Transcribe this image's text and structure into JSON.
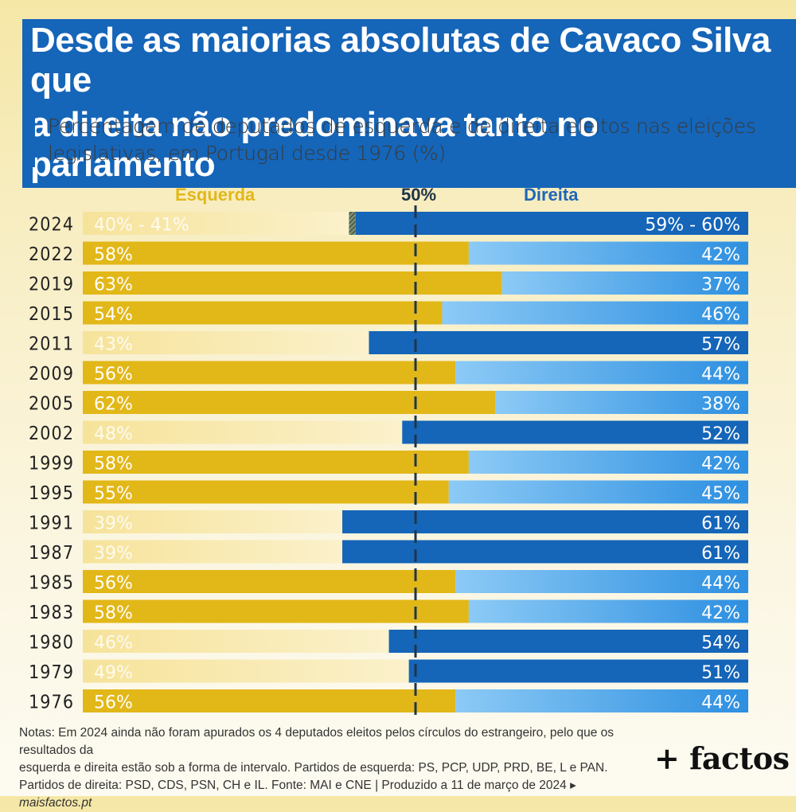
{
  "title": {
    "line1": "Desde as maiorias absolutas de Cavaco Silva que",
    "line2": "a direita não predominava tanto no parlamento"
  },
  "subtitle": {
    "line1": "Percentagem de deputados de esquerda e de direita eleitos nas eleições",
    "line2": "legislativas, em Portugal desde 1976 (%)"
  },
  "colors": {
    "left_strong": "#e2b718",
    "left_weak": "#f7e8a8",
    "right_strong": "#1565b8",
    "right_weak": "#9ad2f8",
    "midline": "#203548"
  },
  "chart_data": {
    "type": "bar",
    "orientation": "horizontal-stacked-100",
    "categories": [
      "2024",
      "2022",
      "2019",
      "2015",
      "2011",
      "2009",
      "2005",
      "2002",
      "1999",
      "1995",
      "1991",
      "1987",
      "1985",
      "1983",
      "1980",
      "1979",
      "1976"
    ],
    "series": [
      {
        "name": "Esquerda",
        "values": [
          40,
          58,
          63,
          54,
          43,
          56,
          62,
          48,
          58,
          55,
          39,
          39,
          56,
          58,
          46,
          49,
          56
        ]
      },
      {
        "name": "Direita",
        "values": [
          59,
          42,
          37,
          46,
          57,
          44,
          38,
          52,
          42,
          45,
          61,
          61,
          44,
          42,
          54,
          51,
          44
        ]
      }
    ],
    "uncertain": {
      "category": "2024",
      "value": 1,
      "between": "Esquerda and Direita"
    },
    "left_labels": [
      "40% - 41%",
      "58%",
      "63%",
      "54%",
      "43%",
      "56%",
      "62%",
      "48%",
      "58%",
      "55%",
      "39%",
      "39%",
      "56%",
      "58%",
      "46%",
      "49%",
      "56%"
    ],
    "right_labels": [
      "59% - 60%",
      "42%",
      "37%",
      "46%",
      "57%",
      "44%",
      "38%",
      "52%",
      "42%",
      "45%",
      "61%",
      "61%",
      "44%",
      "42%",
      "54%",
      "51%",
      "44%"
    ],
    "reference_line": {
      "value": 50,
      "label": "50%"
    },
    "xlim": [
      0,
      100
    ],
    "headers": {
      "left": "Esquerda",
      "right": "Direita"
    }
  },
  "notes": {
    "line1": "Notas: Em 2024 ainda não foram apurados os 4 deputados eleitos pelos círculos do estrangeiro, pelo que os resultados da",
    "line2": "esquerda e direita estão sob a forma de intervalo. Partidos de esquerda: PS, PCP, UDP, PRD, BE, L e PAN.",
    "line3": "Partidos de direita: PSD, CDS, PSN, CH e IL. Fonte: MAI e CNE  |  Produzido a 11 de março de 2024 ▸",
    "site": "maisfactos.pt"
  },
  "brand": "+ factos"
}
